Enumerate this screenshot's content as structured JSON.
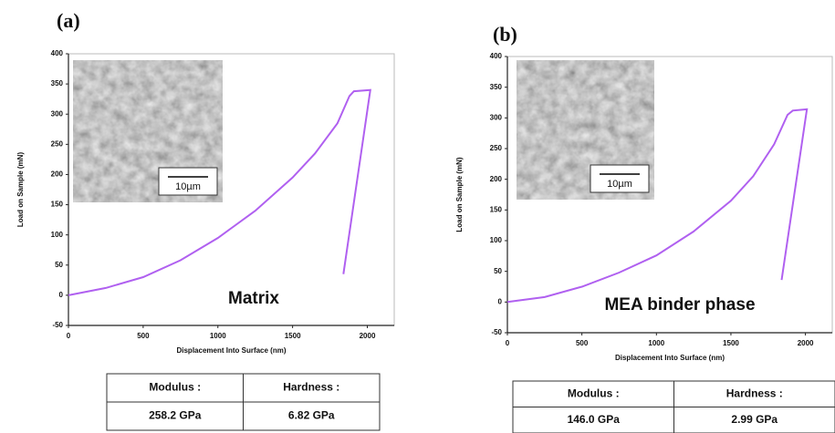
{
  "chart_data": [
    {
      "type": "line",
      "panel_label": "(a)",
      "annotation": "Matrix",
      "xlabel": "Displacement Into Surface (nm)",
      "ylabel": "Load on Sample (mN)",
      "x": [
        0,
        250,
        500,
        750,
        1000,
        1250,
        1500,
        1650,
        1800,
        1880,
        1910,
        2020,
        1840
      ],
      "values": [
        0,
        12,
        30,
        58,
        95,
        140,
        195,
        235,
        285,
        330,
        338,
        340,
        35
      ],
      "color": "#b060f0",
      "xlim": [
        0,
        2180
      ],
      "ylim": [
        -50,
        400
      ],
      "xticks": [
        0,
        500,
        1000,
        1500,
        2000
      ],
      "yticks": [
        -50,
        0,
        50,
        100,
        150,
        200,
        250,
        300,
        350,
        400
      ],
      "grid": false,
      "inset_scale_label": "10µm",
      "table": {
        "header": [
          "Modulus :",
          "Hardness :"
        ],
        "rows": [
          [
            "258.2 GPa",
            "6.82 GPa"
          ]
        ]
      }
    },
    {
      "type": "line",
      "panel_label": "(b)",
      "annotation": "MEA binder phase",
      "xlabel": "Displacement Into Surface (nm)",
      "ylabel": "Load on Sample (mN)",
      "x": [
        0,
        250,
        500,
        750,
        1000,
        1250,
        1500,
        1650,
        1790,
        1880,
        1915,
        2010,
        1840
      ],
      "values": [
        0,
        8,
        25,
        48,
        76,
        115,
        165,
        205,
        257,
        305,
        312,
        314,
        36
      ],
      "color": "#b060f0",
      "xlim": [
        0,
        2180
      ],
      "ylim": [
        -50,
        400
      ],
      "xticks": [
        0,
        500,
        1000,
        1500,
        2000
      ],
      "yticks": [
        -50,
        0,
        50,
        100,
        150,
        200,
        250,
        300,
        350,
        400
      ],
      "grid": false,
      "inset_scale_label": "10µm",
      "table": {
        "header": [
          "Modulus :",
          "Hardness :"
        ],
        "rows": [
          [
            "146.0 GPa",
            "2.99 GPa"
          ]
        ]
      }
    }
  ]
}
